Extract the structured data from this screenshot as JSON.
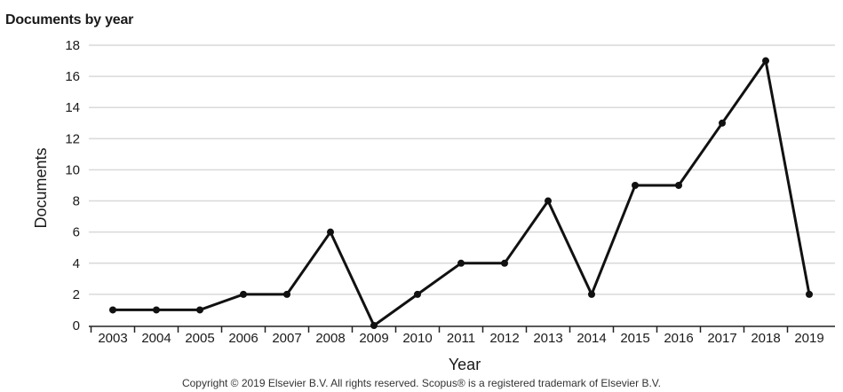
{
  "title": "Documents by year",
  "copyright": "Copyright © 2019 Elsevier B.V. All rights reserved. Scopus® is a registered trademark of Elsevier B.V.",
  "chart_data": {
    "type": "line",
    "title": "Documents by year",
    "xlabel": "Year",
    "ylabel": "Documents",
    "categories": [
      "2003",
      "2004",
      "2005",
      "2006",
      "2007",
      "2008",
      "2009",
      "2010",
      "2011",
      "2012",
      "2013",
      "2014",
      "2015",
      "2016",
      "2017",
      "2018",
      "2019"
    ],
    "values": [
      1,
      1,
      1,
      2,
      2,
      6,
      0,
      2,
      4,
      4,
      8,
      2,
      9,
      9,
      13,
      17,
      2
    ],
    "ylim": [
      0,
      18
    ],
    "yticks": [
      0,
      2,
      4,
      6,
      8,
      10,
      12,
      14,
      16,
      18
    ],
    "grid": true,
    "line_color": "#111111"
  }
}
